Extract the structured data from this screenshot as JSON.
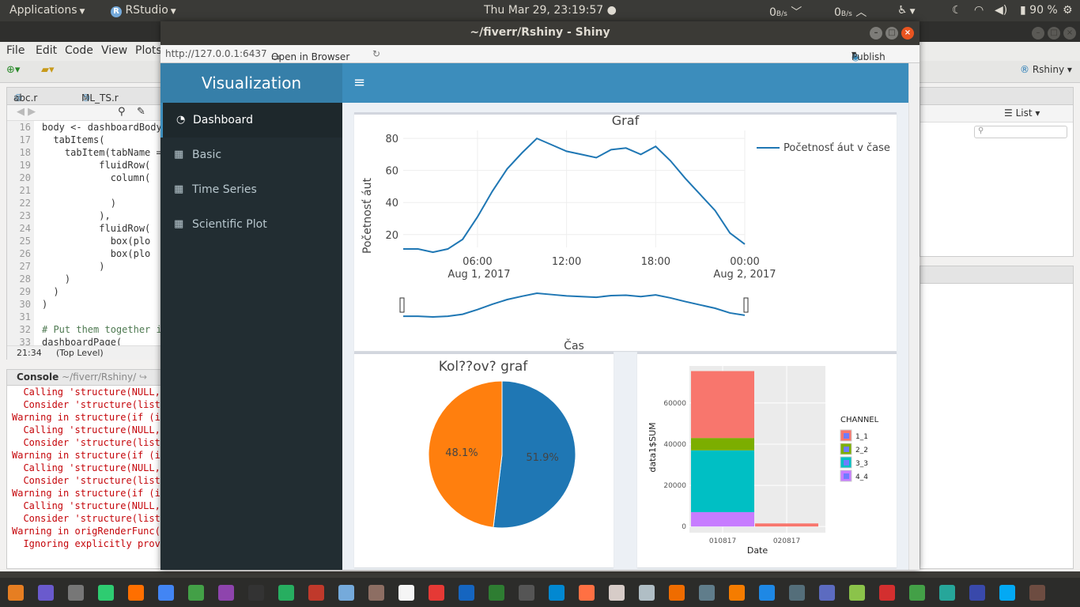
{
  "system_bar": {
    "applications": "Applications",
    "app_name": "RStudio",
    "datetime": "Thu Mar 29, 23:19:57",
    "net_down": "0",
    "net_down_unit": "B/s",
    "net_up": "0",
    "net_up_unit": "B/s",
    "battery": "90 %"
  },
  "rstudio": {
    "menu": [
      "File",
      "Edit",
      "Code",
      "View",
      "Plots"
    ],
    "editor_tabs": [
      "abc.r",
      "ML_TS.r"
    ],
    "code_lines": [
      {
        "n": "16",
        "t": "body <- dashboardBody"
      },
      {
        "n": "17",
        "t": "  tabItems("
      },
      {
        "n": "18",
        "t": "    tabItem(tabName ="
      },
      {
        "n": "19",
        "t": "          fluidRow("
      },
      {
        "n": "20",
        "t": "            column("
      },
      {
        "n": "21",
        "t": ""
      },
      {
        "n": "22",
        "t": "            )"
      },
      {
        "n": "23",
        "t": "          ),"
      },
      {
        "n": "24",
        "t": "          fluidRow("
      },
      {
        "n": "25",
        "t": "            box(plo"
      },
      {
        "n": "26",
        "t": "            box(plo"
      },
      {
        "n": "27",
        "t": "          )"
      },
      {
        "n": "28",
        "t": "    )"
      },
      {
        "n": "29",
        "t": "  )"
      },
      {
        "n": "30",
        "t": ")"
      },
      {
        "n": "31",
        "t": ""
      },
      {
        "n": "32",
        "t": "# Put them together i",
        "comment": true
      },
      {
        "n": "33",
        "t": "dashboardPage("
      }
    ],
    "cursor_pos": "21:34",
    "scope": "(Top Level)",
    "console_title": "Console",
    "console_path": "~/fiverr/Rshiny/",
    "console_lines": [
      "  Calling 'structure(NULL,",
      "  Consider 'structure(list(",
      "Warning in structure(if (i",
      "  Calling 'structure(NULL,",
      "  Consider 'structure(list(",
      "Warning in structure(if (i",
      "  Calling 'structure(NULL,",
      "  Consider 'structure(list(",
      "Warning in structure(if (i",
      "  Calling 'structure(NULL,",
      "  Consider 'structure(list(",
      "Warning in origRenderFunc()",
      "  Ignoring explicitly provi"
    ],
    "project": "Rshiny",
    "env_view": "List"
  },
  "shiny": {
    "window_title": "~/fiverr/Rshiny - Shiny",
    "url": "http://127.0.0.1:6437",
    "open_browser": "Open in Browser",
    "publish": "Publish",
    "logo": "Visualization",
    "menu": [
      "Dashboard",
      "Basic",
      "Time Series",
      "Scientific Plot"
    ]
  },
  "chart_data": [
    {
      "type": "line",
      "title": "Graf",
      "xlabel": "Čas",
      "ylabel": "Početnosť áut",
      "legend": "Početnosť áut v čase",
      "x_ticks": [
        "06:00",
        "12:00",
        "18:00",
        "00:00"
      ],
      "x_dates": [
        "Aug 1, 2017",
        "Aug 2, 2017"
      ],
      "y_ticks": [
        20,
        40,
        60,
        80
      ],
      "ylim": [
        12,
        85
      ],
      "xlim": [
        0,
        23
      ],
      "color": "#1f77b4",
      "x": [
        0,
        1,
        2,
        3,
        4,
        5,
        6,
        7,
        8,
        9,
        10,
        11,
        12,
        13,
        14,
        15,
        16,
        17,
        18,
        19,
        20,
        21,
        22,
        23
      ],
      "y": [
        11,
        11,
        9,
        11,
        17,
        31,
        47,
        61,
        71,
        80,
        76,
        72,
        70,
        68,
        73,
        74,
        70,
        75,
        66,
        55,
        45,
        35,
        21,
        14
      ]
    },
    {
      "type": "pie",
      "title": "Kol??ov? graf",
      "labels": [
        "51.9%",
        "48.1%"
      ],
      "values": [
        51.9,
        48.1
      ],
      "colors": [
        "#1f77b4",
        "#ff7f0e"
      ]
    },
    {
      "type": "bar",
      "xlabel": "Date",
      "ylabel": "data1$SUM",
      "legend_title": "CHANNEL",
      "categories": [
        "010817",
        "020817"
      ],
      "y_ticks": [
        0,
        20000,
        40000,
        60000
      ],
      "ylim": [
        -3000,
        78000
      ],
      "series": [
        {
          "name": "1_1",
          "color": "#F8766D",
          "values": [
            32500,
            1500
          ]
        },
        {
          "name": "2_2",
          "color": "#7CAE00",
          "values": [
            6000,
            0
          ]
        },
        {
          "name": "3_3",
          "color": "#00BFC4",
          "values": [
            30000,
            0
          ]
        },
        {
          "name": "4_4",
          "color": "#C77CFF",
          "values": [
            7000,
            0
          ]
        }
      ]
    }
  ]
}
